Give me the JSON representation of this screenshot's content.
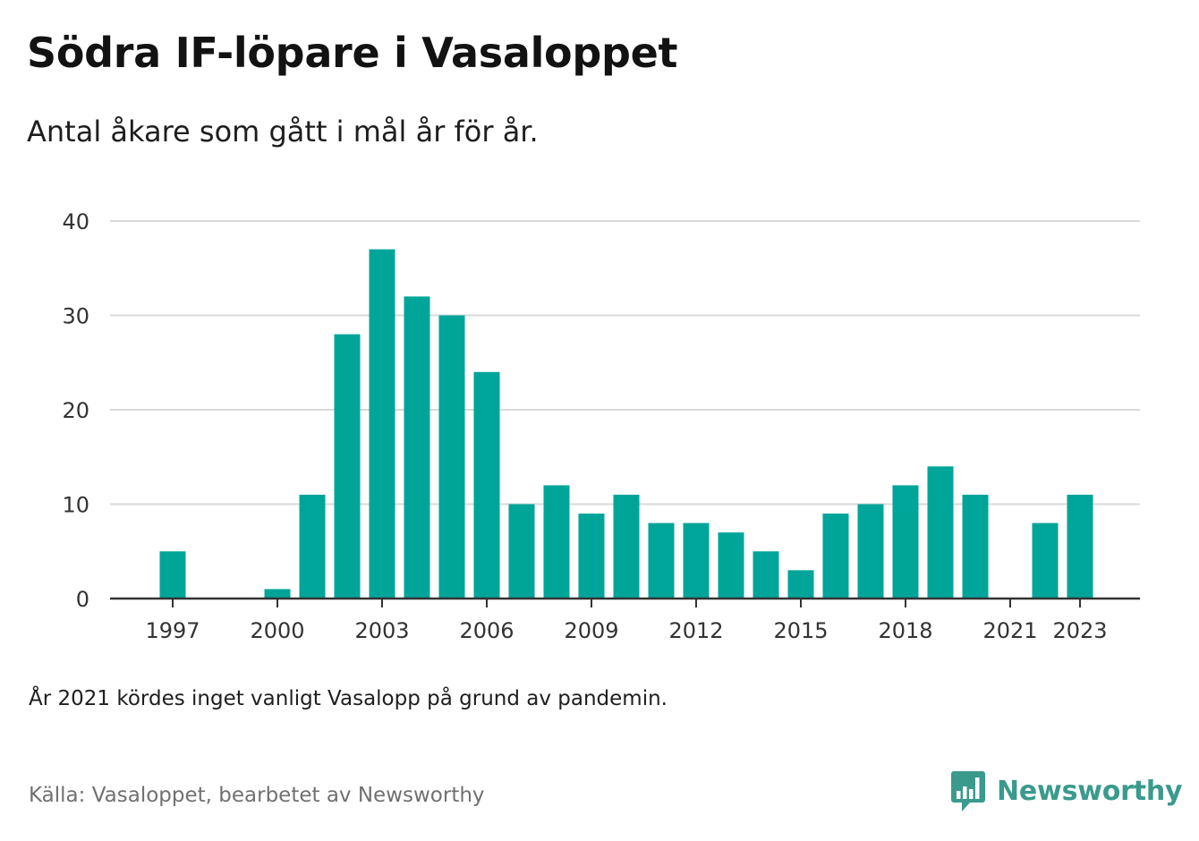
{
  "title": "Södra IF-löpare i Vasaloppet",
  "subtitle": "Antal åkare som gått i mål år för år.",
  "note": "År 2021 kördes inget vanligt Vasalopp på grund av pandemin.",
  "source": "Källa: Vasaloppet, bearbetet av Newsworthy",
  "logo": {
    "text": "Newsworthy",
    "icon": "bar-chart-speech-icon",
    "color": "#3a9a8c"
  },
  "colors": {
    "bar": "#00a59a",
    "grid": "#d9d9d9",
    "axis": "#333333"
  },
  "chart_data": {
    "type": "bar",
    "title": "Södra IF-löpare i Vasaloppet",
    "subtitle": "Antal åkare som gått i mål år för år.",
    "xlabel": "",
    "ylabel": "",
    "ylim": [
      0,
      40
    ],
    "y_ticks": [
      0,
      10,
      20,
      30,
      40
    ],
    "x_tick_labels": [
      "1997",
      "2000",
      "2003",
      "2006",
      "2009",
      "2012",
      "2015",
      "2018",
      "2021",
      "2023"
    ],
    "grid": true,
    "categories": [
      1996,
      1997,
      1998,
      1999,
      2000,
      2001,
      2002,
      2003,
      2004,
      2005,
      2006,
      2007,
      2008,
      2009,
      2010,
      2011,
      2012,
      2013,
      2014,
      2015,
      2016,
      2017,
      2018,
      2019,
      2020,
      2021,
      2022,
      2023
    ],
    "values": [
      0,
      5,
      0,
      0,
      1,
      11,
      28,
      37,
      32,
      30,
      24,
      10,
      12,
      9,
      11,
      8,
      8,
      7,
      5,
      3,
      9,
      10,
      12,
      14,
      11,
      0,
      8,
      11
    ]
  }
}
